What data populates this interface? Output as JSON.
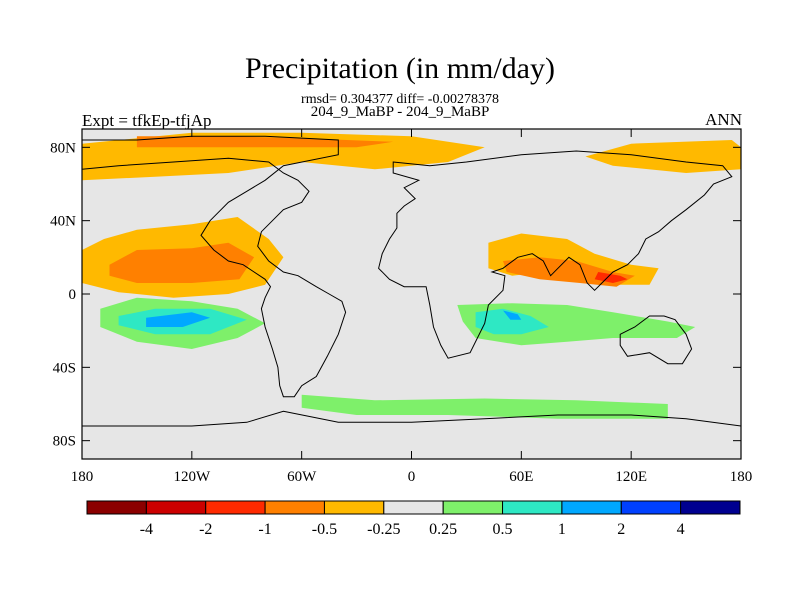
{
  "title": "Precipitation (in mm/day)",
  "stats": "rmsd= 0.304377 diff= -0.00278378",
  "subtitle": "204_9_MaBP - 204_9_MaBP",
  "left_label": "Expt = tfkEp-tfjAp",
  "right_label": "ANN",
  "chart_data": {
    "type": "heatmap",
    "title": "Precipitation (in mm/day)",
    "x_ticks": [
      "180",
      "120W",
      "60W",
      "0",
      "60E",
      "120E",
      "180"
    ],
    "x_tick_values": [
      -180,
      -120,
      -60,
      0,
      60,
      120,
      180
    ],
    "y_ticks": [
      "80N",
      "40N",
      "0",
      "40S",
      "80S"
    ],
    "y_tick_values": [
      80,
      40,
      0,
      -40,
      -80
    ],
    "xlim": [
      -180,
      180
    ],
    "ylim": [
      -90,
      90
    ],
    "colorbar": {
      "labels": [
        "-4",
        "-2",
        "-1",
        "-0.5",
        "-0.25",
        "0.25",
        "0.5",
        "1",
        "2",
        "4"
      ],
      "colors": [
        "#8b0000",
        "#cc0000",
        "#ff2a00",
        "#ff8000",
        "#ffb900",
        "#e6e6e6",
        "#7ef06a",
        "#2ee8c4",
        "#00a8ff",
        "#0040ff",
        "#000090"
      ]
    },
    "regions": [
      {
        "name": "north-polar-orange",
        "level": "-0.25",
        "color": "#ffb900",
        "polygon": [
          [
            -180,
            82
          ],
          [
            -120,
            88
          ],
          [
            -60,
            88
          ],
          [
            0,
            86
          ],
          [
            40,
            80
          ],
          [
            20,
            72
          ],
          [
            -20,
            68
          ],
          [
            -60,
            72
          ],
          [
            -100,
            66
          ],
          [
            -140,
            64
          ],
          [
            -180,
            62
          ]
        ]
      },
      {
        "name": "north-polar-core",
        "level": "-0.5",
        "color": "#ff8000",
        "polygon": [
          [
            -150,
            86
          ],
          [
            -100,
            86
          ],
          [
            -60,
            85
          ],
          [
            -10,
            83
          ],
          [
            -30,
            80
          ],
          [
            -80,
            80
          ],
          [
            -120,
            80
          ],
          [
            -150,
            80
          ]
        ]
      },
      {
        "name": "arctic-east-orange",
        "level": "-0.25",
        "color": "#ffb900",
        "polygon": [
          [
            120,
            82
          ],
          [
            175,
            84
          ],
          [
            180,
            80
          ],
          [
            180,
            68
          ],
          [
            150,
            66
          ],
          [
            110,
            70
          ],
          [
            95,
            75
          ]
        ]
      },
      {
        "name": "north-pacific-orange",
        "level": "-0.25",
        "color": "#ffb900",
        "polygon": [
          [
            -180,
            24
          ],
          [
            -168,
            30
          ],
          [
            -150,
            35
          ],
          [
            -120,
            38
          ],
          [
            -95,
            42
          ],
          [
            -78,
            30
          ],
          [
            -70,
            20
          ],
          [
            -80,
            5
          ],
          [
            -100,
            0
          ],
          [
            -130,
            -2
          ],
          [
            -160,
            1
          ],
          [
            -180,
            6
          ]
        ]
      },
      {
        "name": "north-pacific-core",
        "level": "-0.5",
        "color": "#ff8000",
        "polygon": [
          [
            -165,
            16
          ],
          [
            -150,
            24
          ],
          [
            -120,
            25
          ],
          [
            -100,
            28
          ],
          [
            -86,
            20
          ],
          [
            -94,
            8
          ],
          [
            -120,
            6
          ],
          [
            -150,
            6
          ],
          [
            -165,
            10
          ]
        ]
      },
      {
        "name": "asia-orange",
        "level": "-0.25",
        "color": "#ffb900",
        "polygon": [
          [
            42,
            28
          ],
          [
            60,
            33
          ],
          [
            85,
            30
          ],
          [
            100,
            22
          ],
          [
            120,
            16
          ],
          [
            135,
            14
          ],
          [
            130,
            5
          ],
          [
            110,
            5
          ],
          [
            92,
            10
          ],
          [
            72,
            12
          ],
          [
            55,
            10
          ],
          [
            42,
            14
          ]
        ]
      },
      {
        "name": "asia-core",
        "level": "-0.5",
        "color": "#ff8000",
        "polygon": [
          [
            50,
            18
          ],
          [
            70,
            20
          ],
          [
            90,
            18
          ],
          [
            110,
            12
          ],
          [
            122,
            10
          ],
          [
            112,
            4
          ],
          [
            92,
            6
          ],
          [
            70,
            8
          ],
          [
            52,
            12
          ]
        ]
      },
      {
        "name": "asia-peak",
        "level": "-1",
        "color": "#ff2a00",
        "polygon": [
          [
            102,
            12
          ],
          [
            114,
            10
          ],
          [
            118,
            8
          ],
          [
            110,
            6
          ],
          [
            100,
            8
          ]
        ]
      },
      {
        "name": "south-pacific-green",
        "level": "0.25",
        "color": "#7ef06a",
        "polygon": [
          [
            -170,
            -8
          ],
          [
            -150,
            -2
          ],
          [
            -120,
            -4
          ],
          [
            -95,
            -8
          ],
          [
            -80,
            -16
          ],
          [
            -95,
            -24
          ],
          [
            -120,
            -30
          ],
          [
            -150,
            -26
          ],
          [
            -170,
            -18
          ]
        ]
      },
      {
        "name": "south-pacific-cyan",
        "level": "0.5",
        "color": "#2ee8c4",
        "polygon": [
          [
            -160,
            -12
          ],
          [
            -140,
            -8
          ],
          [
            -110,
            -8
          ],
          [
            -90,
            -14
          ],
          [
            -110,
            -22
          ],
          [
            -140,
            -22
          ],
          [
            -160,
            -17
          ]
        ]
      },
      {
        "name": "south-pacific-blue",
        "level": "1",
        "color": "#00a8ff",
        "polygon": [
          [
            -145,
            -13
          ],
          [
            -120,
            -10
          ],
          [
            -110,
            -13
          ],
          [
            -125,
            -18
          ],
          [
            -145,
            -18
          ]
        ]
      },
      {
        "name": "indian-ocean-green",
        "level": "0.25",
        "color": "#7ef06a",
        "polygon": [
          [
            25,
            -6
          ],
          [
            55,
            -5
          ],
          [
            85,
            -6
          ],
          [
            110,
            -10
          ],
          [
            140,
            -15
          ],
          [
            155,
            -18
          ],
          [
            145,
            -24
          ],
          [
            110,
            -24
          ],
          [
            85,
            -26
          ],
          [
            60,
            -28
          ],
          [
            35,
            -24
          ],
          [
            28,
            -15
          ]
        ]
      },
      {
        "name": "indian-ocean-cyan",
        "level": "0.5",
        "color": "#2ee8c4",
        "polygon": [
          [
            35,
            -10
          ],
          [
            50,
            -8
          ],
          [
            65,
            -12
          ],
          [
            75,
            -18
          ],
          [
            60,
            -22
          ],
          [
            45,
            -22
          ],
          [
            35,
            -18
          ]
        ]
      },
      {
        "name": "indian-ocean-blue",
        "level": "1",
        "color": "#00a8ff",
        "polygon": [
          [
            50,
            -9
          ],
          [
            58,
            -11
          ],
          [
            60,
            -14
          ],
          [
            54,
            -14
          ]
        ]
      },
      {
        "name": "southern-ocean-green",
        "level": "0.25",
        "color": "#7ef06a",
        "polygon": [
          [
            -60,
            -55
          ],
          [
            -20,
            -58
          ],
          [
            40,
            -57
          ],
          [
            90,
            -58
          ],
          [
            140,
            -60
          ],
          [
            140,
            -68
          ],
          [
            80,
            -68
          ],
          [
            20,
            -66
          ],
          [
            -30,
            -66
          ],
          [
            -60,
            -62
          ]
        ]
      }
    ],
    "continent_outlines": [
      {
        "name": "north-america",
        "path": [
          [
            -180,
            84
          ],
          [
            -150,
            84
          ],
          [
            -120,
            86
          ],
          [
            -80,
            86
          ],
          [
            -40,
            84
          ],
          [
            -40,
            76
          ],
          [
            -70,
            70
          ],
          [
            -80,
            62
          ],
          [
            -90,
            56
          ],
          [
            -100,
            50
          ],
          [
            -110,
            40
          ],
          [
            -115,
            32
          ],
          [
            -108,
            24
          ],
          [
            -100,
            18
          ],
          [
            -92,
            16
          ],
          [
            -86,
            12
          ],
          [
            -80,
            8
          ],
          [
            -77,
            4
          ],
          [
            -80,
            -2
          ],
          [
            -82,
            -8
          ],
          [
            -80,
            -18
          ],
          [
            -76,
            -30
          ],
          [
            -73,
            -40
          ],
          [
            -72,
            -50
          ],
          [
            -70,
            -56
          ],
          [
            -64,
            -56
          ],
          [
            -60,
            -50
          ],
          [
            -52,
            -45
          ],
          [
            -46,
            -34
          ],
          [
            -40,
            -22
          ],
          [
            -36,
            -10
          ],
          [
            -38,
            -4
          ],
          [
            -45,
            0
          ],
          [
            -52,
            4
          ],
          [
            -62,
            10
          ],
          [
            -70,
            12
          ],
          [
            -78,
            18
          ],
          [
            -84,
            26
          ],
          [
            -82,
            34
          ],
          [
            -76,
            40
          ],
          [
            -70,
            46
          ],
          [
            -60,
            50
          ],
          [
            -56,
            56
          ],
          [
            -62,
            62
          ],
          [
            -70,
            66
          ],
          [
            -78,
            72
          ],
          [
            -100,
            74
          ],
          [
            -130,
            72
          ],
          [
            -160,
            70
          ],
          [
            -180,
            68
          ]
        ]
      },
      {
        "name": "eurasia-africa",
        "path": [
          [
            -10,
            72
          ],
          [
            10,
            70
          ],
          [
            30,
            72
          ],
          [
            60,
            76
          ],
          [
            90,
            78
          ],
          [
            120,
            76
          ],
          [
            150,
            72
          ],
          [
            170,
            70
          ],
          [
            175,
            64
          ],
          [
            165,
            60
          ],
          [
            160,
            54
          ],
          [
            150,
            46
          ],
          [
            142,
            40
          ],
          [
            135,
            34
          ],
          [
            128,
            30
          ],
          [
            124,
            22
          ],
          [
            118,
            16
          ],
          [
            110,
            12
          ],
          [
            104,
            6
          ],
          [
            100,
            2
          ],
          [
            96,
            6
          ],
          [
            92,
            16
          ],
          [
            86,
            20
          ],
          [
            80,
            14
          ],
          [
            76,
            10
          ],
          [
            72,
            18
          ],
          [
            66,
            22
          ],
          [
            58,
            20
          ],
          [
            50,
            14
          ],
          [
            44,
            12
          ],
          [
            51,
            10
          ],
          [
            50,
            2
          ],
          [
            42,
            -6
          ],
          [
            40,
            -16
          ],
          [
            36,
            -24
          ],
          [
            32,
            -32
          ],
          [
            20,
            -35
          ],
          [
            16,
            -28
          ],
          [
            12,
            -18
          ],
          [
            10,
            -6
          ],
          [
            8,
            4
          ],
          [
            -4,
            4
          ],
          [
            -12,
            8
          ],
          [
            -18,
            14
          ],
          [
            -16,
            22
          ],
          [
            -12,
            30
          ],
          [
            -8,
            36
          ],
          [
            -8,
            44
          ],
          [
            -4,
            48
          ],
          [
            2,
            52
          ],
          [
            -4,
            58
          ],
          [
            4,
            62
          ],
          [
            -10,
            66
          ]
        ]
      },
      {
        "name": "australia",
        "path": [
          [
            114,
            -22
          ],
          [
            122,
            -18
          ],
          [
            130,
            -12
          ],
          [
            138,
            -12
          ],
          [
            144,
            -14
          ],
          [
            150,
            -22
          ],
          [
            153,
            -30
          ],
          [
            148,
            -38
          ],
          [
            140,
            -38
          ],
          [
            130,
            -32
          ],
          [
            118,
            -34
          ],
          [
            114,
            -28
          ]
        ]
      },
      {
        "name": "antarctica",
        "path": [
          [
            -70,
            -64
          ],
          [
            -40,
            -70
          ],
          [
            0,
            -70
          ],
          [
            40,
            -68
          ],
          [
            80,
            -66
          ],
          [
            120,
            -66
          ],
          [
            150,
            -68
          ],
          [
            180,
            -72
          ],
          [
            180,
            -90
          ],
          [
            -180,
            -90
          ],
          [
            -180,
            -72
          ],
          [
            -120,
            -72
          ],
          [
            -90,
            -70
          ]
        ]
      }
    ]
  }
}
